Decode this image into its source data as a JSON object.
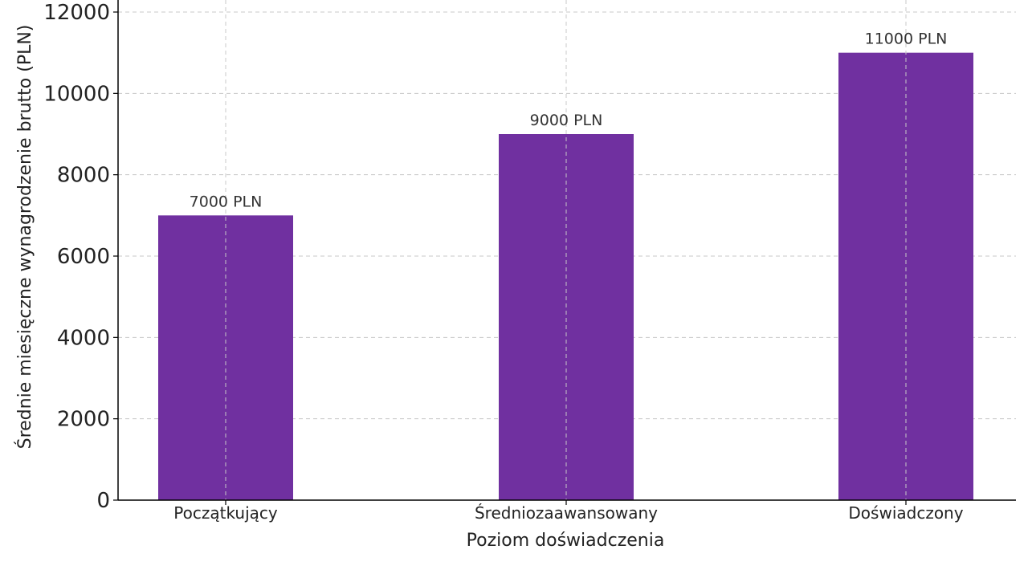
{
  "chart_data": {
    "type": "bar",
    "categories": [
      "Początkujący",
      "Średniozaawansowany",
      "Doświadczony"
    ],
    "values": [
      7000,
      9000,
      11000
    ],
    "data_labels": [
      "7000 PLN",
      "9000 PLN",
      "11000 PLN"
    ],
    "title": "",
    "xlabel": "Poziom doświadczenia",
    "ylabel": "Średnie miesięczne wynagrodzenie brutto (PLN)",
    "ylim": [
      0,
      12000
    ],
    "yticks": [
      0,
      2000,
      4000,
      6000,
      8000,
      10000,
      12000
    ],
    "grid": true,
    "bar_color": "#7030a0"
  }
}
